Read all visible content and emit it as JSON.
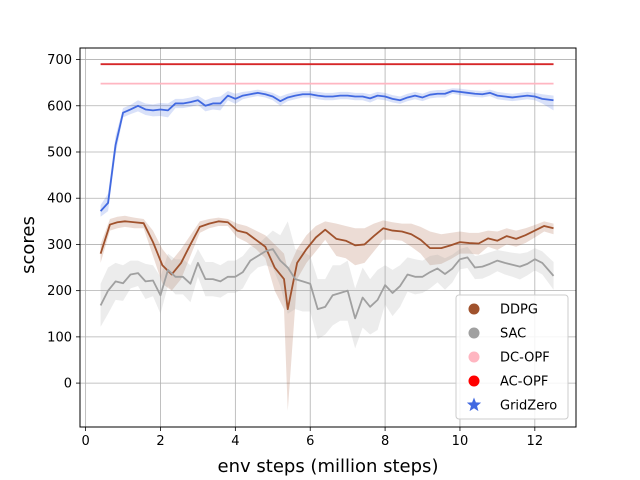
{
  "chart_data": {
    "type": "line",
    "title": "",
    "xlabel": "env steps (million steps)",
    "ylabel": "scores",
    "xlim": [
      -0.15,
      13.1
    ],
    "ylim": [
      -95,
      725
    ],
    "xticks": [
      0,
      2,
      4,
      6,
      8,
      10,
      12
    ],
    "yticks": [
      0,
      100,
      200,
      300,
      400,
      500,
      600,
      700
    ],
    "grid": true,
    "legend_position": "lower-right",
    "series": [
      {
        "name": "DDPG",
        "color": "#a0522d",
        "band_color": "#a0522d",
        "marker": "circle",
        "x": [
          0.4,
          0.65,
          0.85,
          1.05,
          1.3,
          1.55,
          1.8,
          2.05,
          2.3,
          2.55,
          2.8,
          3.05,
          3.3,
          3.55,
          3.8,
          4.05,
          4.3,
          4.55,
          4.8,
          5.05,
          5.3,
          5.4,
          5.65,
          5.9,
          6.15,
          6.4,
          6.7,
          6.95,
          7.2,
          7.45,
          7.7,
          7.95,
          8.2,
          8.45,
          8.7,
          8.95,
          9.2,
          9.5,
          9.75,
          10.0,
          10.25,
          10.5,
          10.75,
          11.0,
          11.25,
          11.5,
          11.75,
          12.0,
          12.25,
          12.5
        ],
        "values": [
          280,
          343,
          348,
          350,
          348,
          346,
          305,
          255,
          235,
          260,
          300,
          338,
          345,
          350,
          348,
          330,
          325,
          310,
          295,
          250,
          225,
          160,
          260,
          290,
          315,
          332,
          312,
          308,
          298,
          300,
          318,
          335,
          330,
          328,
          322,
          310,
          292,
          292,
          298,
          305,
          303,
          302,
          313,
          308,
          318,
          312,
          320,
          330,
          340,
          335
        ],
        "band_upper": [
          300,
          355,
          360,
          362,
          358,
          355,
          330,
          290,
          265,
          290,
          320,
          350,
          355,
          358,
          355,
          345,
          340,
          330,
          320,
          300,
          280,
          245,
          290,
          320,
          340,
          350,
          345,
          340,
          335,
          335,
          345,
          352,
          348,
          345,
          345,
          338,
          328,
          322,
          325,
          328,
          325,
          325,
          330,
          328,
          335,
          330,
          335,
          342,
          350,
          345
        ],
        "band_lower": [
          260,
          330,
          335,
          338,
          335,
          335,
          275,
          215,
          200,
          225,
          275,
          325,
          335,
          340,
          340,
          315,
          305,
          290,
          270,
          200,
          160,
          -60,
          225,
          260,
          285,
          310,
          275,
          270,
          255,
          260,
          285,
          310,
          310,
          308,
          295,
          280,
          255,
          258,
          268,
          280,
          280,
          278,
          295,
          288,
          300,
          295,
          303,
          315,
          328,
          322
        ]
      },
      {
        "name": "SAC",
        "color": "#a0a0a0",
        "band_color": "#a0a0a0",
        "marker": "circle",
        "x": [
          0.4,
          0.6,
          0.8,
          1.0,
          1.2,
          1.4,
          1.6,
          1.8,
          2.0,
          2.2,
          2.4,
          2.6,
          2.8,
          3.0,
          3.2,
          3.4,
          3.6,
          3.8,
          4.0,
          4.2,
          4.4,
          4.6,
          4.8,
          5.0,
          5.2,
          5.4,
          5.6,
          5.8,
          6.0,
          6.2,
          6.4,
          6.6,
          6.8,
          7.0,
          7.2,
          7.4,
          7.6,
          7.8,
          8.0,
          8.2,
          8.4,
          8.6,
          8.8,
          9.0,
          9.2,
          9.4,
          9.6,
          9.8,
          10.0,
          10.2,
          10.4,
          10.6,
          10.8,
          11.0,
          11.2,
          11.4,
          11.6,
          11.8,
          12.0,
          12.2,
          12.5
        ],
        "values": [
          168,
          200,
          220,
          216,
          235,
          238,
          220,
          222,
          190,
          245,
          230,
          230,
          215,
          260,
          225,
          225,
          220,
          230,
          230,
          240,
          265,
          275,
          285,
          290,
          265,
          250,
          225,
          220,
          215,
          160,
          165,
          190,
          195,
          200,
          140,
          185,
          165,
          180,
          212,
          195,
          210,
          235,
          230,
          230,
          240,
          248,
          236,
          248,
          268,
          272,
          250,
          252,
          258,
          265,
          260,
          256,
          252,
          258,
          268,
          260,
          232
        ],
        "band_upper": [
          215,
          250,
          260,
          255,
          265,
          265,
          258,
          255,
          230,
          280,
          268,
          268,
          255,
          290,
          262,
          262,
          255,
          265,
          265,
          275,
          295,
          300,
          315,
          330,
          320,
          350,
          290,
          285,
          275,
          225,
          225,
          255,
          255,
          265,
          205,
          250,
          225,
          245,
          255,
          245,
          255,
          272,
          268,
          265,
          275,
          278,
          270,
          278,
          290,
          295,
          275,
          278,
          283,
          288,
          285,
          282,
          280,
          283,
          292,
          285,
          262
        ],
        "band_lower": [
          122,
          150,
          180,
          178,
          205,
          210,
          182,
          188,
          150,
          210,
          192,
          192,
          175,
          230,
          188,
          188,
          185,
          195,
          195,
          205,
          235,
          250,
          255,
          250,
          210,
          150,
          160,
          155,
          155,
          95,
          105,
          125,
          135,
          135,
          75,
          120,
          105,
          115,
          170,
          145,
          165,
          198,
          192,
          195,
          205,
          218,
          202,
          218,
          246,
          249,
          225,
          226,
          233,
          242,
          235,
          230,
          224,
          233,
          244,
          235,
          202
        ]
      },
      {
        "name": "DC-OPF",
        "color": "#ffb6c1",
        "marker": "circle",
        "x": [
          0.4,
          12.5
        ],
        "values": [
          648,
          648
        ]
      },
      {
        "name": "AC-OPF",
        "color": "#d62728",
        "legend_color": "#ff0000",
        "marker": "circle",
        "x": [
          0.4,
          12.5
        ],
        "values": [
          690,
          690
        ]
      },
      {
        "name": "GridZero",
        "color": "#4169e1",
        "band_color": "#4169e1",
        "marker": "star",
        "x": [
          0.4,
          0.6,
          0.8,
          1.0,
          1.2,
          1.4,
          1.6,
          1.8,
          2.0,
          2.2,
          2.4,
          2.6,
          2.8,
          3.0,
          3.2,
          3.4,
          3.6,
          3.8,
          4.0,
          4.2,
          4.4,
          4.6,
          4.8,
          5.0,
          5.2,
          5.4,
          5.6,
          5.8,
          6.0,
          6.2,
          6.4,
          6.6,
          6.8,
          7.0,
          7.2,
          7.4,
          7.6,
          7.8,
          8.0,
          8.2,
          8.4,
          8.6,
          8.8,
          9.0,
          9.2,
          9.4,
          9.6,
          9.8,
          10.0,
          10.2,
          10.4,
          10.6,
          10.8,
          11.0,
          11.2,
          11.4,
          11.6,
          11.8,
          12.0,
          12.2,
          12.5
        ],
        "values": [
          372,
          390,
          515,
          585,
          592,
          600,
          592,
          590,
          592,
          590,
          605,
          605,
          608,
          612,
          600,
          605,
          605,
          622,
          615,
          622,
          625,
          628,
          625,
          620,
          610,
          618,
          622,
          625,
          625,
          622,
          620,
          620,
          622,
          622,
          620,
          620,
          616,
          622,
          620,
          615,
          612,
          618,
          622,
          618,
          624,
          626,
          626,
          632,
          630,
          628,
          626,
          625,
          628,
          622,
          620,
          618,
          620,
          622,
          620,
          615,
          612
        ],
        "band_upper": [
          385,
          410,
          535,
          595,
          602,
          612,
          605,
          603,
          606,
          605,
          615,
          615,
          618,
          622,
          612,
          618,
          620,
          632,
          626,
          630,
          632,
          635,
          632,
          628,
          620,
          626,
          630,
          632,
          632,
          630,
          628,
          628,
          630,
          630,
          628,
          628,
          625,
          630,
          628,
          623,
          620,
          626,
          630,
          626,
          632,
          634,
          634,
          638,
          637,
          635,
          633,
          632,
          635,
          630,
          628,
          626,
          628,
          630,
          628,
          625,
          622
        ],
        "band_lower": [
          360,
          372,
          495,
          575,
          582,
          588,
          580,
          577,
          578,
          575,
          595,
          595,
          598,
          602,
          588,
          592,
          590,
          612,
          604,
          614,
          618,
          621,
          618,
          612,
          600,
          610,
          614,
          618,
          618,
          614,
          612,
          612,
          614,
          614,
          612,
          612,
          607,
          614,
          612,
          607,
          604,
          610,
          614,
          610,
          616,
          618,
          618,
          626,
          623,
          621,
          619,
          618,
          621,
          614,
          612,
          610,
          612,
          614,
          612,
          605,
          590
        ]
      }
    ]
  }
}
